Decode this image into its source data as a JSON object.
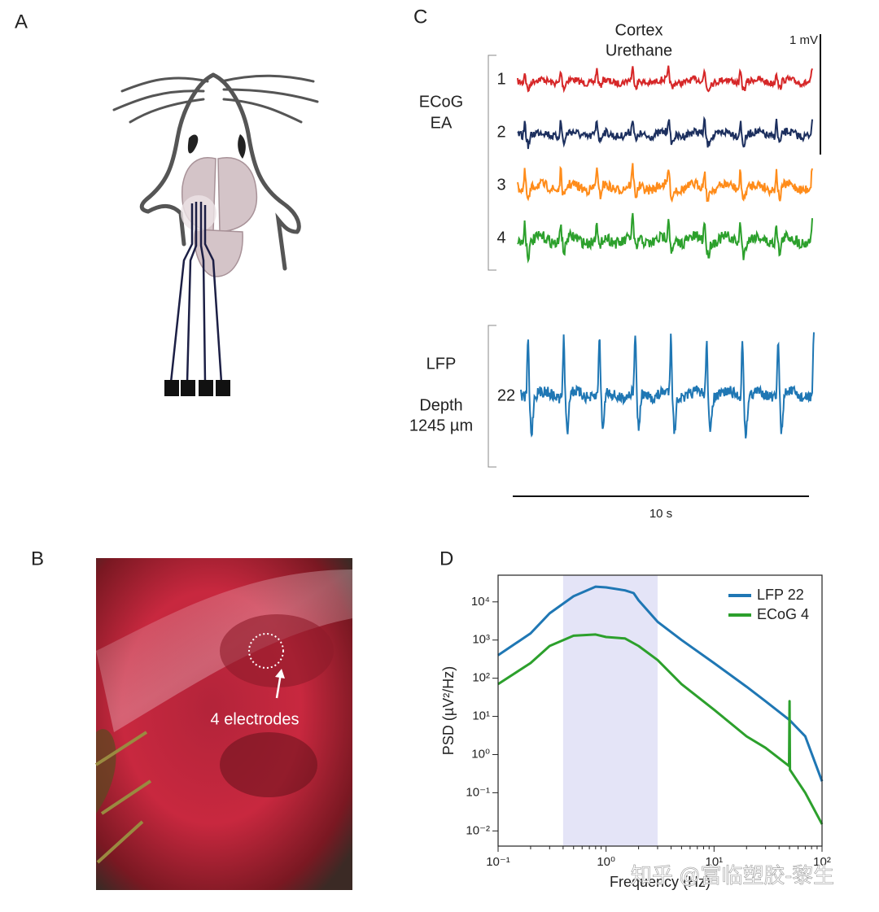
{
  "panel_a": {
    "letter": "A"
  },
  "panel_b": {
    "letter": "B",
    "annotation": "4 electrodes"
  },
  "panel_c": {
    "letter": "C",
    "title_lines": [
      "Cortex",
      "Urethane"
    ],
    "scale_bar_v": "1 mV",
    "scale_bar_t": "10 s",
    "ecog_label": [
      "ECoG",
      "EA"
    ],
    "traces": [
      {
        "label": "1",
        "color": "#d62728"
      },
      {
        "label": "2",
        "color": "#1c2f5e"
      },
      {
        "label": "3",
        "color": "#ff8c1a"
      },
      {
        "label": "4",
        "color": "#2ca02c"
      }
    ],
    "lfp_label": [
      "LFP",
      "Depth",
      "1245 µm"
    ],
    "lfp_trace": {
      "label": "22",
      "color": "#1f77b4"
    }
  },
  "chart_data": {
    "type": "line",
    "panel_letter": "D",
    "xlabel": "Frequency (Hz)",
    "ylabel": "PSD (µV²/Hz)",
    "xscale": "log",
    "yscale": "log",
    "xlim": [
      0.1,
      100
    ],
    "ylim": [
      0.004,
      50000
    ],
    "xticks": [
      {
        "value": 0.1,
        "label": "10⁻¹"
      },
      {
        "value": 1,
        "label": "10⁰"
      },
      {
        "value": 10,
        "label": "10¹"
      },
      {
        "value": 100,
        "label": "10²"
      }
    ],
    "yticks": [
      {
        "value": 0.01,
        "label": "10⁻²"
      },
      {
        "value": 0.1,
        "label": "10⁻¹"
      },
      {
        "value": 1,
        "label": "10⁰"
      },
      {
        "value": 10,
        "label": "10¹"
      },
      {
        "value": 100,
        "label": "10²"
      },
      {
        "value": 1000,
        "label": "10³"
      },
      {
        "value": 10000,
        "label": "10⁴"
      }
    ],
    "grid": false,
    "legend": "upper right",
    "highlight_band": {
      "xlim": [
        0.4,
        3
      ],
      "color": "#e4e4f7"
    },
    "series": [
      {
        "name": "LFP 22",
        "color": "#1f77b4",
        "x": [
          0.1,
          0.2,
          0.3,
          0.5,
          0.8,
          1,
          1.5,
          1.8,
          2,
          3,
          5,
          10,
          20,
          30,
          50,
          70,
          100
        ],
        "values": [
          400,
          1500,
          5000,
          14000,
          25000,
          24000,
          20000,
          17000,
          11000,
          3000,
          1000,
          250,
          60,
          25,
          8,
          3,
          0.2
        ]
      },
      {
        "name": "ECoG 4",
        "color": "#2ca02c",
        "x": [
          0.1,
          0.2,
          0.3,
          0.5,
          0.8,
          1,
          1.5,
          2,
          3,
          5,
          10,
          20,
          30,
          49.5,
          50,
          50.5,
          70,
          100
        ],
        "values": [
          70,
          250,
          700,
          1300,
          1400,
          1200,
          1100,
          700,
          300,
          70,
          15,
          3,
          1.5,
          0.5,
          25,
          0.4,
          0.1,
          0.015
        ]
      }
    ]
  },
  "watermark": "知乎 @富临塑胶-黎生"
}
